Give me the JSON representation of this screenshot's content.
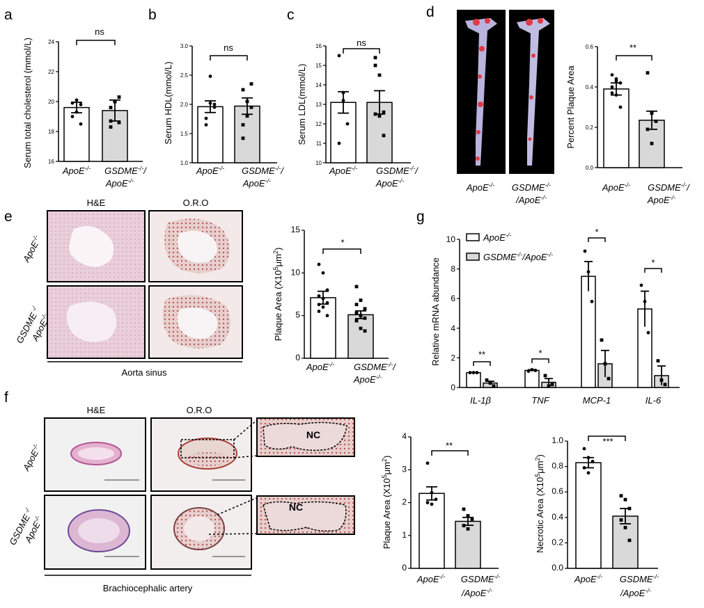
{
  "panels": {
    "a": {
      "letter": "a",
      "ylabel": "Serum total cholesterol (mmol/L)",
      "ticks": [
        "16",
        "18",
        "20",
        "22",
        "24"
      ],
      "cat1": "ApoE",
      "cat1_sup": "-/-",
      "cat2a": "GSDME",
      "cat2a_sup": "-/-",
      "cat2b": "/",
      "cat2c": "ApoE",
      "cat2c_sup": "-/-",
      "sig": "ns"
    },
    "b": {
      "letter": "b",
      "ylabel": "Serum HDL(mmol/L)",
      "ticks": [
        "1.0",
        "1.5",
        "2.0",
        "2.5",
        "3.0"
      ],
      "cat1": "ApoE",
      "cat1_sup": "-/-",
      "cat2a": "GSDME",
      "cat2a_sup": "-/-",
      "cat2b": "/",
      "cat2c": "ApoE",
      "cat2c_sup": "-/-",
      "sig": "ns"
    },
    "c": {
      "letter": "c",
      "ylabel": "Serum LDL(mmol/L)",
      "ticks": [
        "10",
        "11",
        "12",
        "13",
        "14",
        "15",
        "16"
      ],
      "cat1": "ApoE",
      "cat1_sup": "-/-",
      "cat2a": "GSDME",
      "cat2a_sup": "-/-",
      "cat2b": "/",
      "cat2c": "ApoE",
      "cat2c_sup": "-/-",
      "sig": "ns"
    },
    "d": {
      "letter": "d",
      "ylabel": "Percent Plaque Area",
      "ticks": [
        "0.0",
        "0.2",
        "0.4",
        "0.6"
      ],
      "img1": "ApoE",
      "img1_sup": "-/-",
      "img2a": "GSDME",
      "img2a_sup": "-/-",
      "img2b": "/ApoE",
      "img2b_sup": "-/-",
      "cat1": "ApoE",
      "cat1_sup": "-/-",
      "cat2a": "GSDME",
      "cat2a_sup": "-/-",
      "cat2b": "/",
      "cat2c": "ApoE",
      "cat2c_sup": "-/-",
      "sig": "**"
    },
    "e": {
      "letter": "e",
      "col1": "H&E",
      "col2": "O.R.O",
      "row1": "ApoE",
      "row1_sup": "-/-",
      "row2a": "GSDME",
      "row2a_sup": " -/",
      "row2b": "ApoE",
      "row2b_sup": "-/-",
      "caption": "Aorta sinus",
      "ylabel_a": "Plaque Area (X10",
      "ylabel_sup": "5",
      "ylabel_b": "μm",
      "ylabel_sup2": "2",
      "ylabel_c": ")",
      "ticks": [
        "0",
        "5",
        "10",
        "15"
      ],
      "cat1": "ApoE",
      "cat1_sup": "-/-",
      "cat2a": "GSDME",
      "cat2a_sup": "-/-",
      "cat2b": "/",
      "cat2c": "ApoE",
      "cat2c_sup": "-/-",
      "sig": "*"
    },
    "f": {
      "letter": "f",
      "col1": "H&E",
      "col2": "O.R.O",
      "row1": "ApoE",
      "row1_sup": "-/-",
      "row2a": "GSDME",
      "row2a_sup": " -/",
      "row2b": "ApoE",
      "row2b_sup": "-/-",
      "caption": "Brachiocephalic artery",
      "nc": "NC",
      "plaque_ylabel_a": "Plaque Area (X10",
      "plaque_ylabel_sup": "5",
      "plaque_ylabel_b": "μm",
      "plaque_ylabel_sup2": "2",
      "plaque_ylabel_c": ")",
      "plaque_ticks": [
        "0",
        "1",
        "2",
        "3",
        "4"
      ],
      "plaque_sig": "**",
      "necrotic_ylabel_a": "Necrotic Area (X10",
      "necrotic_ylabel_sup": "5",
      "necrotic_ylabel_b": "μm",
      "necrotic_ylabel_sup2": "2",
      "necrotic_ylabel_c": ")",
      "necrotic_ticks": [
        "0.0",
        "0.2",
        "0.4",
        "0.6",
        "0.8",
        "1.0"
      ],
      "necrotic_sig": "***",
      "cat1": "ApoE",
      "cat1_sup": "-/-",
      "cat2a": "GSDME",
      "cat2a_sup": "-/-",
      "cat2c": "/ApoE",
      "cat2c_sup": "-/-"
    },
    "g": {
      "letter": "g",
      "ylabel": "Relative mRNA abundance",
      "ticks": [
        "0",
        "2",
        "4",
        "6",
        "8",
        "10"
      ],
      "legend1": "ApoE",
      "legend1_sup": "-/-",
      "legend2a": "GSDME",
      "legend2a_sup": "-/-",
      "legend2b": "/ApoE",
      "legend2b_sup": "-/-",
      "genes": [
        "IL-1β",
        "TNF",
        "MCP-1",
        "IL-6"
      ],
      "sigs": [
        "**",
        "*",
        "*",
        "*"
      ]
    }
  },
  "chart_data": [
    {
      "type": "bar",
      "panel": "a",
      "categories": [
        "ApoE-/-",
        "GSDME-/-/ApoE-/-"
      ],
      "values": [
        19.6,
        19.4
      ],
      "errors": [
        0.35,
        0.7
      ],
      "points": [
        [
          19.0,
          19.3,
          19.8,
          19.9,
          20.1,
          18.5
        ],
        [
          18.7,
          20.0,
          20.3,
          19.6,
          20.0,
          18.6,
          18.3
        ]
      ],
      "ylim": [
        16,
        24
      ]
    },
    {
      "type": "bar",
      "panel": "b",
      "categories": [
        "ApoE-/-",
        "GSDME-/-/ApoE-/-"
      ],
      "values": [
        1.96,
        1.97
      ],
      "errors": [
        0.1,
        0.14
      ],
      "points": [
        [
          1.76,
          2.02,
          1.95,
          1.65,
          2.48,
          2.0
        ],
        [
          1.42,
          1.8,
          2.35,
          2.25,
          2.05,
          1.95,
          1.65
        ]
      ],
      "ylim": [
        1.0,
        3.0
      ]
    },
    {
      "type": "bar",
      "panel": "c",
      "categories": [
        "ApoE-/-",
        "GSDME-/-/ApoE-/-"
      ],
      "values": [
        13.1,
        13.1
      ],
      "errors": [
        0.55,
        0.6
      ],
      "points": [
        [
          15.5,
          13.6,
          12.0,
          11.0,
          13.2
        ],
        [
          15.0,
          14.5,
          12.6,
          12.5,
          12.4,
          11.4,
          15.4
        ]
      ],
      "ylim": [
        10,
        16
      ]
    },
    {
      "type": "bar",
      "panel": "d",
      "categories": [
        "ApoE-/-",
        "GSDME-/-/ApoE-/-"
      ],
      "values": [
        0.39,
        0.235
      ],
      "errors": [
        0.03,
        0.045
      ],
      "points": [
        [
          0.46,
          0.44,
          0.42,
          0.4,
          0.36,
          0.3,
          0.37,
          0.43
        ],
        [
          0.47,
          0.27,
          0.23,
          0.19,
          0.12
        ]
      ],
      "ylim": [
        0,
        0.6
      ]
    },
    {
      "type": "bar",
      "panel": "e",
      "categories": [
        "ApoE-/-",
        "GSDME-/-/ApoE-/-"
      ],
      "values": [
        7.1,
        5.1
      ],
      "errors": [
        0.75,
        0.45
      ],
      "points": [
        [
          11.0,
          10.0,
          8.0,
          7.3,
          7.0,
          6.5,
          6.3,
          6.0,
          5.0,
          5.5
        ],
        [
          8.4,
          6.8,
          5.8,
          5.3,
          5.0,
          4.7,
          4.4,
          3.5,
          3.2,
          6.3
        ]
      ],
      "ylim": [
        0,
        15
      ]
    },
    {
      "type": "bar",
      "panel": "f-plaque",
      "categories": [
        "ApoE-/-",
        "GSDME-/-/ApoE-/-"
      ],
      "values": [
        2.28,
        1.43
      ],
      "errors": [
        0.2,
        0.12
      ],
      "points": [
        [
          3.2,
          2.3,
          2.1,
          2.0,
          1.95
        ],
        [
          1.8,
          1.6,
          1.5,
          1.3,
          1.2
        ]
      ],
      "ylim": [
        0,
        4
      ]
    },
    {
      "type": "bar",
      "panel": "f-necrotic",
      "categories": [
        "ApoE-/-",
        "GSDME-/-/ApoE-/-"
      ],
      "values": [
        0.83,
        0.41
      ],
      "errors": [
        0.04,
        0.06
      ],
      "points": [
        [
          0.94,
          0.87,
          0.84,
          0.79,
          0.75
        ],
        [
          0.57,
          0.54,
          0.47,
          0.38,
          0.32,
          0.22
        ]
      ],
      "ylim": [
        0,
        1.0
      ]
    },
    {
      "type": "bar",
      "panel": "g",
      "categories": [
        "IL-1β",
        "TNF",
        "MCP-1",
        "IL-6"
      ],
      "ylim": [
        0,
        10
      ],
      "series": [
        {
          "name": "ApoE-/-",
          "values": [
            1.0,
            1.15,
            7.5,
            5.3
          ],
          "errors": [
            0.02,
            0.05,
            1.0,
            1.2
          ],
          "points": [
            [
              1.0,
              1.0,
              1.0
            ],
            [
              1.1,
              1.2,
              1.15
            ],
            [
              9.2,
              7.8,
              5.8
            ],
            [
              6.9,
              5.8,
              3.7
            ]
          ]
        },
        {
          "name": "GSDME-/-/ApoE-/-",
          "values": [
            0.3,
            0.35,
            1.6,
            0.8
          ],
          "errors": [
            0.12,
            0.25,
            0.9,
            0.65
          ],
          "points": [
            [
              0.5,
              0.3,
              0.1
            ],
            [
              0.8,
              0.1,
              0.2
            ],
            [
              3.2,
              1.6,
              0.6
            ],
            [
              1.8,
              0.5,
              0.2
            ]
          ]
        }
      ]
    }
  ]
}
